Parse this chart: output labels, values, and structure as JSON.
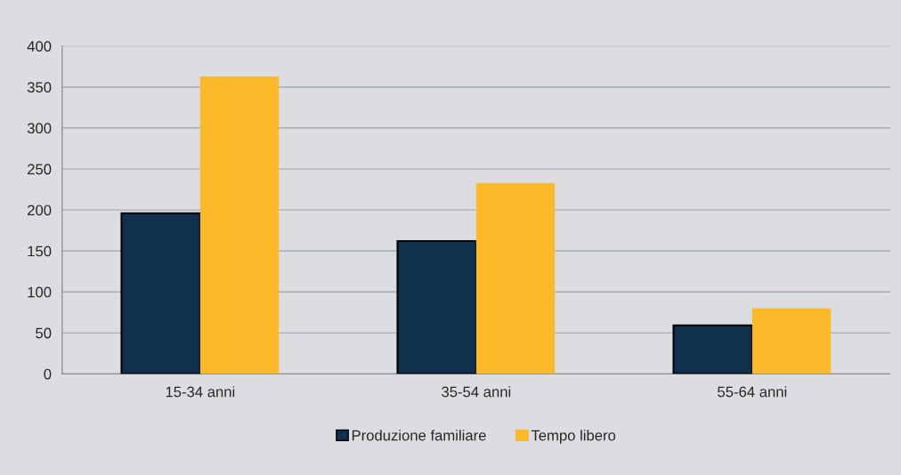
{
  "chart_data": {
    "type": "bar",
    "categories": [
      "15-34 anni",
      "35-54 anni",
      "55-64 anni"
    ],
    "series": [
      {
        "name": "Produzione familiare",
        "color": "#10304d",
        "values": [
          196,
          162,
          59
        ]
      },
      {
        "name": "Tempo libero",
        "color": "#fbb829",
        "values": [
          363,
          233,
          80
        ]
      }
    ],
    "ylim": [
      0,
      400
    ],
    "yticks": [
      0,
      50,
      100,
      150,
      200,
      250,
      300,
      350,
      400
    ],
    "grid": "y",
    "legend": "bottom"
  }
}
